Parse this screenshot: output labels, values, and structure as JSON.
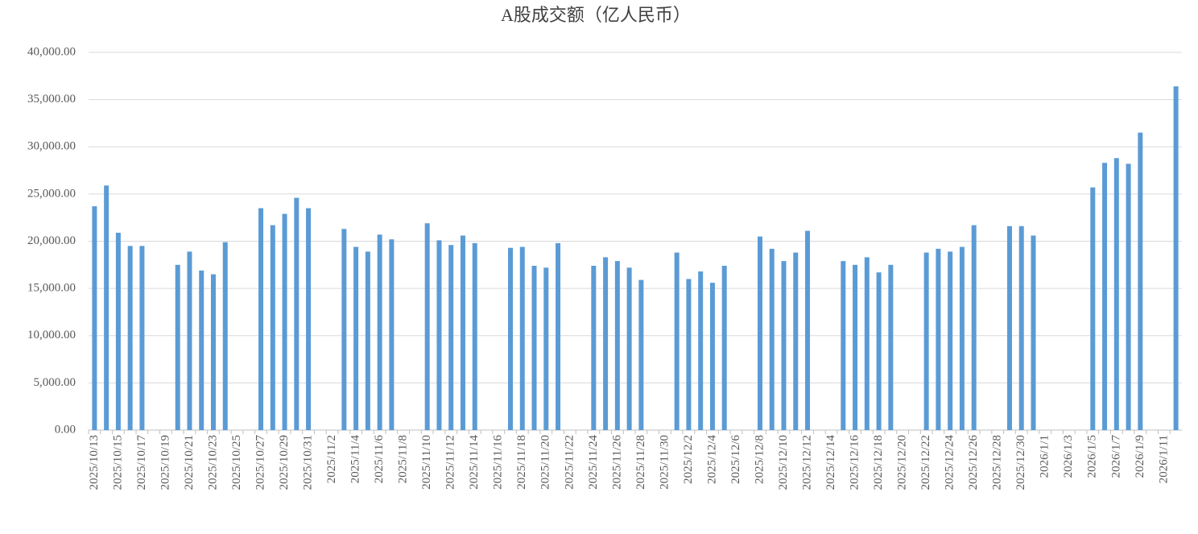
{
  "chart_data": {
    "type": "bar",
    "title": "A股成交额（亿人民币）",
    "categories": [
      "2025/10/13",
      null,
      "2025/10/15",
      null,
      "2025/10/17",
      null,
      "2025/10/19",
      null,
      "2025/10/21",
      null,
      "2025/10/23",
      null,
      "2025/10/25",
      null,
      "2025/10/27",
      null,
      "2025/10/29",
      null,
      "2025/10/31",
      null,
      "2025/11/2",
      null,
      "2025/11/4",
      null,
      "2025/11/6",
      null,
      "2025/11/8",
      null,
      "2025/11/10",
      null,
      "2025/11/12",
      null,
      "2025/11/14",
      null,
      "2025/11/16",
      null,
      "2025/11/18",
      null,
      "2025/11/20",
      null,
      "2025/11/22",
      null,
      "2025/11/24",
      null,
      "2025/11/26",
      null,
      "2025/11/28",
      null,
      "2025/11/30",
      null,
      "2025/12/2",
      null,
      "2025/12/4",
      null,
      "2025/12/6",
      null,
      "2025/12/8",
      null,
      "2025/12/10",
      null,
      "2025/12/12",
      null,
      "2025/12/14",
      null,
      "2025/12/16",
      null,
      "2025/12/18",
      null,
      "2025/12/20",
      null,
      "2025/12/22",
      null,
      "2025/12/24",
      null,
      "2025/12/26",
      null,
      "2025/12/28",
      null,
      "2025/12/30",
      null,
      "2026/1/1",
      null,
      "2026/1/3",
      null,
      "2026/1/5",
      null,
      "2026/1/7",
      null,
      "2026/1/9",
      null,
      "2026/1/11",
      null
    ],
    "values": [
      23700,
      25900,
      20900,
      19500,
      19500,
      null,
      null,
      17500,
      18900,
      16900,
      16500,
      19900,
      null,
      null,
      23500,
      21700,
      22900,
      24600,
      23500,
      null,
      null,
      21300,
      19400,
      18900,
      20700,
      20200,
      null,
      null,
      21900,
      20100,
      19600,
      20600,
      19800,
      null,
      null,
      19300,
      19400,
      17400,
      17200,
      19800,
      null,
      null,
      17400,
      18300,
      17900,
      17200,
      15900,
      null,
      null,
      18800,
      16000,
      16800,
      15600,
      17400,
      null,
      null,
      20500,
      19200,
      17900,
      18800,
      21100,
      null,
      null,
      17900,
      17500,
      18300,
      16700,
      17500,
      null,
      null,
      18800,
      19200,
      18900,
      19400,
      21700,
      null,
      null,
      21600,
      21600,
      20600,
      null,
      null,
      null,
      null,
      25700,
      28300,
      28800,
      28200,
      31500,
      null,
      null,
      36400
    ],
    "color": "#5b9bd5",
    "ylim": [
      0,
      40000
    ],
    "yticks": [
      {
        "value": 0,
        "label": "0.00"
      },
      {
        "value": 5000,
        "label": "5,000.00"
      },
      {
        "value": 10000,
        "label": "10,000.00"
      },
      {
        "value": 15000,
        "label": "15,000.00"
      },
      {
        "value": 20000,
        "label": "20,000.00"
      },
      {
        "value": 25000,
        "label": "25,000.00"
      },
      {
        "value": 30000,
        "label": "30,000.00"
      },
      {
        "value": 35000,
        "label": "35,000.00"
      },
      {
        "value": 40000,
        "label": "40,000.00"
      }
    ],
    "grid": true
  }
}
